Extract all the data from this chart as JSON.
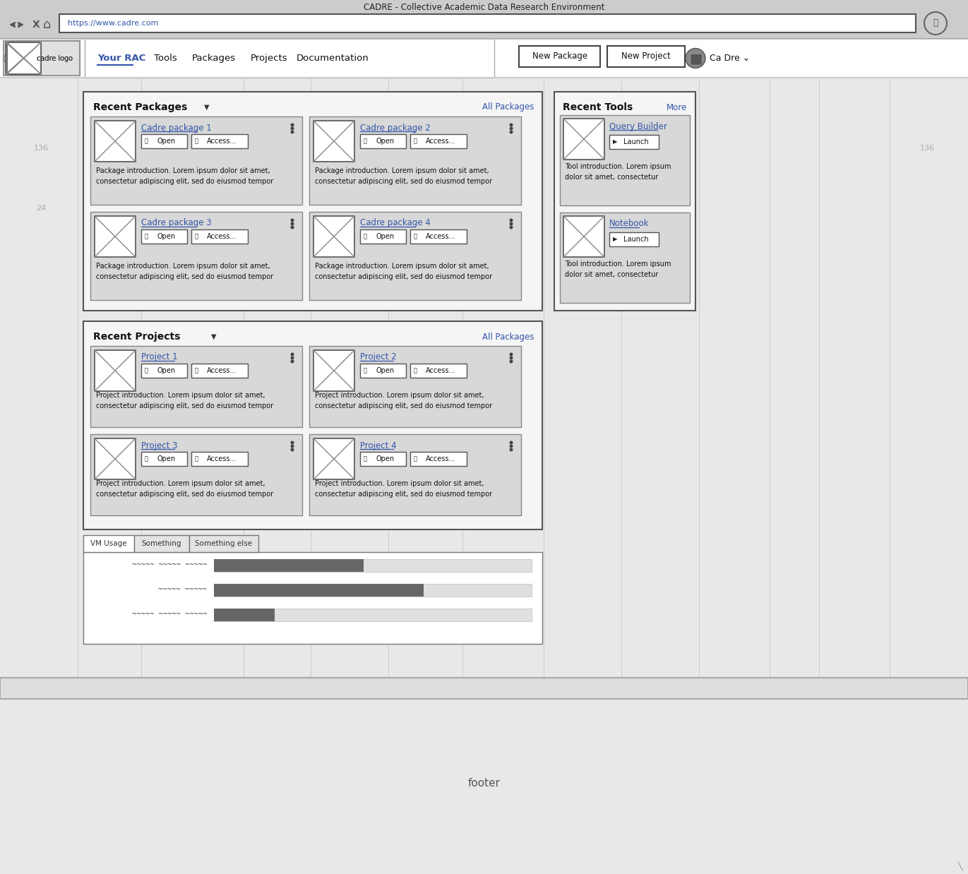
{
  "title": "CADRE - Collective Academic Data Research Environment",
  "url": "https://www.cadre.com",
  "nav_items": [
    "Your RAC",
    "Tools",
    "Packages",
    "Projects",
    "Documentation"
  ],
  "nav_active": "Your RAC",
  "buttons_top": [
    "New Package",
    "New Project"
  ],
  "user_label": "Ca Dre",
  "logo_text": "cadre logo",
  "bg_browser": "#cccccc",
  "bg_page": "#e8e8e8",
  "bg_white": "#ffffff",
  "bg_card": "#d4d4d4",
  "bg_nav": "#ffffff",
  "bg_section": "#f2f2f2",
  "border_dark": "#333333",
  "border_mid": "#777777",
  "border_light": "#aaaaaa",
  "link_color": "#3355aa",
  "text_color": "#111111",
  "ruler_color": "#aaaaaa",
  "footer_bg": "#e0e0e0",
  "recent_packages_title": "Recent Packages",
  "all_packages_link": "All Packages",
  "packages": [
    {
      "name": "Cadre package 1",
      "desc": "Package introduction. Lorem ipsum dolor sit amet,\nconsectetur adipiscing elit, sed do eiusmod tempor"
    },
    {
      "name": "Cadre package 2",
      "desc": "Package introduction. Lorem ipsum dolor sit amet,\nconsectetur adipiscing elit, sed do eiusmod tempor"
    },
    {
      "name": "Cadre package 3",
      "desc": "Package introduction. Lorem ipsum dolor sit amet,\nconsectetur adipiscing elit, sed do eiusmod tempor"
    },
    {
      "name": "Cadre package 4",
      "desc": "Package introduction. Lorem ipsum dolor sit amet,\nconsectetur adipiscing elit, sed do eiusmod tempor"
    }
  ],
  "recent_projects_title": "Recent Projects",
  "all_projects_link": "All Packages",
  "projects": [
    {
      "name": "Project 1",
      "desc": "Project introduction. Lorem ipsum dolor sit amet,\nconsectetur adipiscing elit, sed do eiusmod tempor"
    },
    {
      "name": "Project 2",
      "desc": "Project introduction. Lorem ipsum dolor sit amet,\nconsectetur adipiscing elit, sed do eiusmod tempor"
    },
    {
      "name": "Project 3",
      "desc": "Project introduction. Lorem ipsum dolor sit amet,\nconsectetur adipiscing elit, sed do eiusmod tempor"
    },
    {
      "name": "Project 4",
      "desc": "Project introduction. Lorem ipsum dolor sit amet,\nconsectetur adipiscing elit, sed do eiusmod tempor"
    }
  ],
  "recent_tools_title": "Recent Tools",
  "more_link": "More",
  "tools": [
    {
      "name": "Query Builder",
      "desc": "Tool introduction. Lorem ipsum\ndolor sit amet, consectetur"
    },
    {
      "name": "Notebook",
      "desc": "Tool introduction. Lorem ipsum\ndolor sit amet, consectetur"
    }
  ],
  "tabs": [
    "VM Usage",
    "Something",
    "Something else"
  ],
  "bar_labels": [
    "~~~~~ ~~~~~ ~~~~~",
    "~~~~~ ~~~~~",
    "~~~~~ ~~~~~ ~~~~~"
  ],
  "bar_fills": [
    0.47,
    0.66,
    0.19
  ],
  "bar_fill_color": "#666666",
  "bar_bg_color": "#e8e8e8",
  "footer_text": "footer"
}
